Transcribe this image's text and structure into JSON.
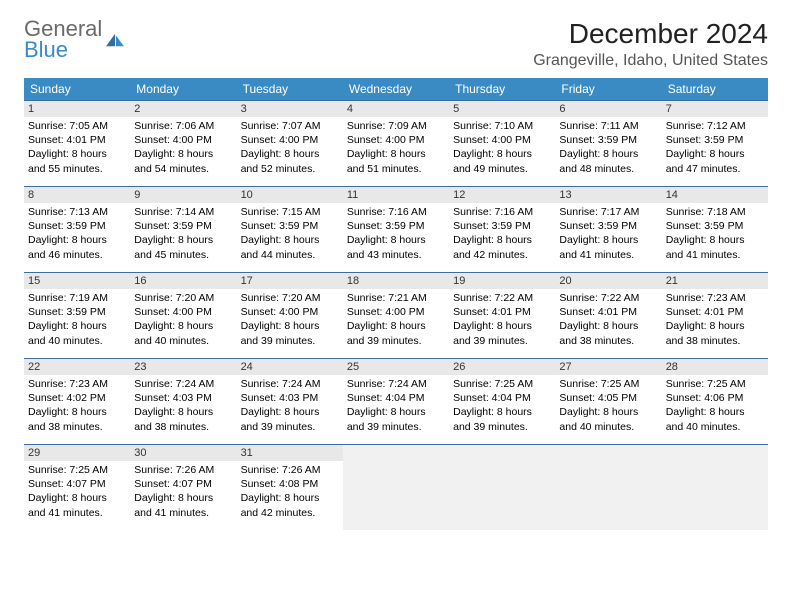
{
  "logo": {
    "text1": "General",
    "text2": "Blue"
  },
  "title": "December 2024",
  "location": "Grangeville, Idaho, United States",
  "colors": {
    "header_bg": "#3a8ac4",
    "header_text": "#ffffff",
    "daynum_bg": "#e8e8e8",
    "border": "#3a6ea5",
    "page_bg": "#ffffff",
    "text": "#000000",
    "logo_gray": "#6b6b6b",
    "logo_blue": "#3a8ac4"
  },
  "weekdays": [
    "Sunday",
    "Monday",
    "Tuesday",
    "Wednesday",
    "Thursday",
    "Friday",
    "Saturday"
  ],
  "days": [
    {
      "n": "1",
      "sunrise": "7:05 AM",
      "sunset": "4:01 PM",
      "daylight": "8 hours and 55 minutes."
    },
    {
      "n": "2",
      "sunrise": "7:06 AM",
      "sunset": "4:00 PM",
      "daylight": "8 hours and 54 minutes."
    },
    {
      "n": "3",
      "sunrise": "7:07 AM",
      "sunset": "4:00 PM",
      "daylight": "8 hours and 52 minutes."
    },
    {
      "n": "4",
      "sunrise": "7:09 AM",
      "sunset": "4:00 PM",
      "daylight": "8 hours and 51 minutes."
    },
    {
      "n": "5",
      "sunrise": "7:10 AM",
      "sunset": "4:00 PM",
      "daylight": "8 hours and 49 minutes."
    },
    {
      "n": "6",
      "sunrise": "7:11 AM",
      "sunset": "3:59 PM",
      "daylight": "8 hours and 48 minutes."
    },
    {
      "n": "7",
      "sunrise": "7:12 AM",
      "sunset": "3:59 PM",
      "daylight": "8 hours and 47 minutes."
    },
    {
      "n": "8",
      "sunrise": "7:13 AM",
      "sunset": "3:59 PM",
      "daylight": "8 hours and 46 minutes."
    },
    {
      "n": "9",
      "sunrise": "7:14 AM",
      "sunset": "3:59 PM",
      "daylight": "8 hours and 45 minutes."
    },
    {
      "n": "10",
      "sunrise": "7:15 AM",
      "sunset": "3:59 PM",
      "daylight": "8 hours and 44 minutes."
    },
    {
      "n": "11",
      "sunrise": "7:16 AM",
      "sunset": "3:59 PM",
      "daylight": "8 hours and 43 minutes."
    },
    {
      "n": "12",
      "sunrise": "7:16 AM",
      "sunset": "3:59 PM",
      "daylight": "8 hours and 42 minutes."
    },
    {
      "n": "13",
      "sunrise": "7:17 AM",
      "sunset": "3:59 PM",
      "daylight": "8 hours and 41 minutes."
    },
    {
      "n": "14",
      "sunrise": "7:18 AM",
      "sunset": "3:59 PM",
      "daylight": "8 hours and 41 minutes."
    },
    {
      "n": "15",
      "sunrise": "7:19 AM",
      "sunset": "3:59 PM",
      "daylight": "8 hours and 40 minutes."
    },
    {
      "n": "16",
      "sunrise": "7:20 AM",
      "sunset": "4:00 PM",
      "daylight": "8 hours and 40 minutes."
    },
    {
      "n": "17",
      "sunrise": "7:20 AM",
      "sunset": "4:00 PM",
      "daylight": "8 hours and 39 minutes."
    },
    {
      "n": "18",
      "sunrise": "7:21 AM",
      "sunset": "4:00 PM",
      "daylight": "8 hours and 39 minutes."
    },
    {
      "n": "19",
      "sunrise": "7:22 AM",
      "sunset": "4:01 PM",
      "daylight": "8 hours and 39 minutes."
    },
    {
      "n": "20",
      "sunrise": "7:22 AM",
      "sunset": "4:01 PM",
      "daylight": "8 hours and 38 minutes."
    },
    {
      "n": "21",
      "sunrise": "7:23 AM",
      "sunset": "4:01 PM",
      "daylight": "8 hours and 38 minutes."
    },
    {
      "n": "22",
      "sunrise": "7:23 AM",
      "sunset": "4:02 PM",
      "daylight": "8 hours and 38 minutes."
    },
    {
      "n": "23",
      "sunrise": "7:24 AM",
      "sunset": "4:03 PM",
      "daylight": "8 hours and 38 minutes."
    },
    {
      "n": "24",
      "sunrise": "7:24 AM",
      "sunset": "4:03 PM",
      "daylight": "8 hours and 39 minutes."
    },
    {
      "n": "25",
      "sunrise": "7:24 AM",
      "sunset": "4:04 PM",
      "daylight": "8 hours and 39 minutes."
    },
    {
      "n": "26",
      "sunrise": "7:25 AM",
      "sunset": "4:04 PM",
      "daylight": "8 hours and 39 minutes."
    },
    {
      "n": "27",
      "sunrise": "7:25 AM",
      "sunset": "4:05 PM",
      "daylight": "8 hours and 40 minutes."
    },
    {
      "n": "28",
      "sunrise": "7:25 AM",
      "sunset": "4:06 PM",
      "daylight": "8 hours and 40 minutes."
    },
    {
      "n": "29",
      "sunrise": "7:25 AM",
      "sunset": "4:07 PM",
      "daylight": "8 hours and 41 minutes."
    },
    {
      "n": "30",
      "sunrise": "7:26 AM",
      "sunset": "4:07 PM",
      "daylight": "8 hours and 41 minutes."
    },
    {
      "n": "31",
      "sunrise": "7:26 AM",
      "sunset": "4:08 PM",
      "daylight": "8 hours and 42 minutes."
    }
  ],
  "labels": {
    "sunrise": "Sunrise: ",
    "sunset": "Sunset: ",
    "daylight": "Daylight: "
  },
  "layout": {
    "first_weekday_offset": 0,
    "total_cells": 35
  }
}
